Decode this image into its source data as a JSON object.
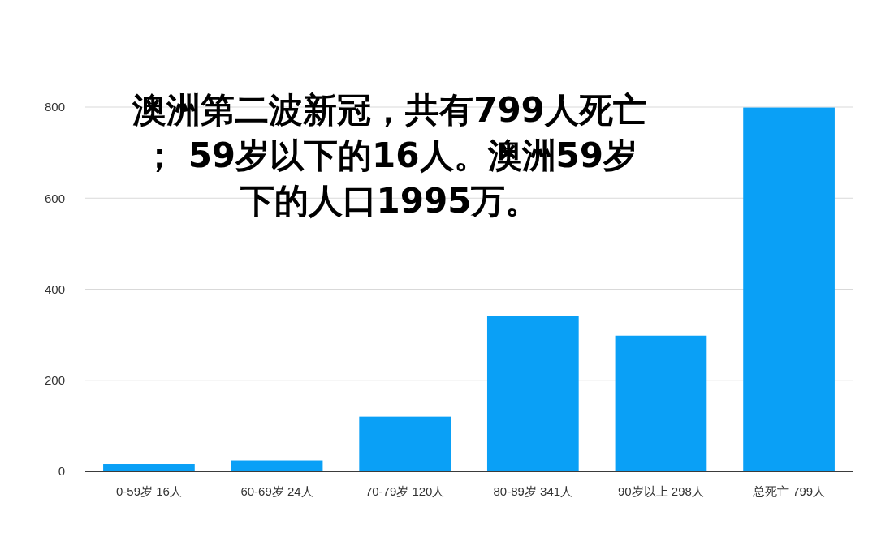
{
  "chart_data": {
    "type": "bar",
    "title": "澳洲第二波新冠，共有799人死亡； 59岁以下的16人。澳洲59岁下的人口1995万。",
    "categories": [
      "0-59岁 16人",
      "60-69岁 24人",
      "70-79岁 120人",
      "80-89岁 341人",
      "90岁以上 298人",
      "总死亡 799人"
    ],
    "values": [
      16,
      24,
      120,
      341,
      298,
      799
    ],
    "color": "#0aa0f6",
    "ylim": [
      0,
      800
    ],
    "yticks": [
      0,
      200,
      400,
      600,
      800
    ],
    "grid": "y"
  }
}
